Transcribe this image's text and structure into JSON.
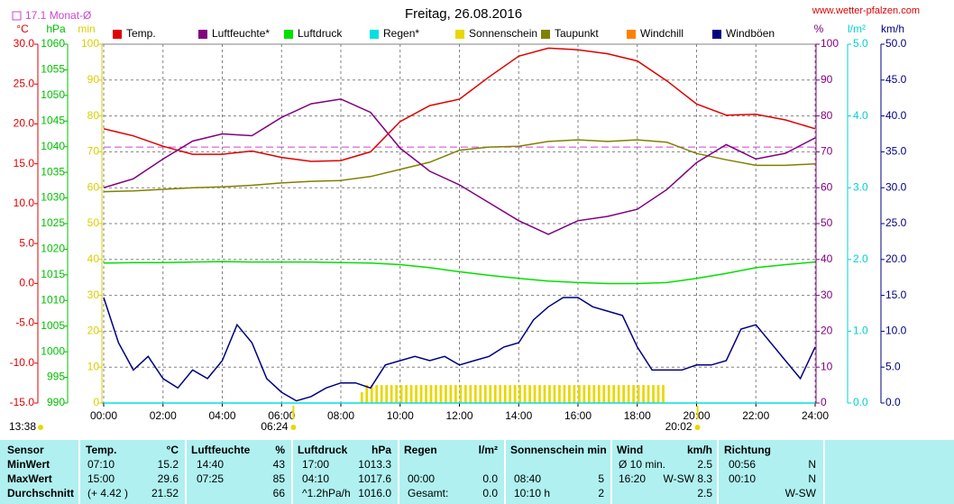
{
  "chart_data": {
    "type": "line",
    "title": "Freitag, 26.08.2016",
    "source": "www.wetter-pfalzen.com",
    "reference": {
      "label": "17.1 Monat-Ø",
      "value": 17.1,
      "axis": 0,
      "color": "#cc44cc"
    },
    "xlim": [
      0,
      1440
    ],
    "xticks": [
      {
        "value": 0,
        "label": "00:00"
      },
      {
        "value": 120,
        "label": "02:00"
      },
      {
        "value": 240,
        "label": "04:00"
      },
      {
        "value": 360,
        "label": "06:00"
      },
      {
        "value": 480,
        "label": "08:00"
      },
      {
        "value": 600,
        "label": "10:00"
      },
      {
        "value": 720,
        "label": "12:00"
      },
      {
        "value": 840,
        "label": "14:00"
      },
      {
        "value": 960,
        "label": "16:00"
      },
      {
        "value": 1080,
        "label": "18:00"
      },
      {
        "value": 1200,
        "label": "20:00"
      },
      {
        "value": 1320,
        "label": "22:00"
      },
      {
        "value": 1440,
        "label": "24:00"
      }
    ],
    "grid": true,
    "axes": [
      {
        "unit": "°C",
        "color": "#e00000",
        "side": "left",
        "lim": [
          -15,
          30
        ],
        "ticks": [
          {
            "value": -15,
            "label": "-15.0"
          },
          {
            "value": -10,
            "label": "-10.0"
          },
          {
            "value": -5,
            "label": "-5.0"
          },
          {
            "value": 0,
            "label": "0.0"
          },
          {
            "value": 5,
            "label": "5.0"
          },
          {
            "value": 10,
            "label": "10.0"
          },
          {
            "value": 15,
            "label": "15.0"
          },
          {
            "value": 20,
            "label": "20.0"
          },
          {
            "value": 25,
            "label": "25.0"
          },
          {
            "value": 30,
            "label": "30.0"
          }
        ]
      },
      {
        "unit": "hPa",
        "color": "#00c000",
        "side": "left",
        "lim": [
          990,
          1060
        ],
        "ticks": [
          990,
          995,
          1000,
          1005,
          1010,
          1015,
          1020,
          1025,
          1030,
          1035,
          1040,
          1045,
          1050,
          1055,
          1060
        ]
      },
      {
        "unit": "min",
        "color": "#d8d000",
        "side": "left",
        "lim": [
          0,
          100
        ],
        "ticks": [
          0,
          10,
          20,
          30,
          40,
          50,
          60,
          70,
          80,
          90,
          100
        ]
      },
      {
        "unit": "%",
        "color": "#800080",
        "side": "right",
        "lim": [
          0,
          100
        ],
        "ticks": [
          0,
          10,
          20,
          30,
          40,
          50,
          60,
          70,
          80,
          90,
          100
        ]
      },
      {
        "unit": "l/m²",
        "color": "#00d0d0",
        "side": "right",
        "lim": [
          0,
          5
        ],
        "ticks": [
          {
            "value": 0,
            "label": "0.0"
          },
          {
            "value": 1,
            "label": "1.0"
          },
          {
            "value": 2,
            "label": "2.0"
          },
          {
            "value": 3,
            "label": "3.0"
          },
          {
            "value": 4,
            "label": "4.0"
          },
          {
            "value": 5,
            "label": "5.0"
          }
        ]
      },
      {
        "unit": "km/h",
        "color": "#000080",
        "side": "right",
        "lim": [
          0,
          50
        ],
        "ticks": [
          {
            "value": 0,
            "label": "0.0"
          },
          {
            "value": 5,
            "label": "5.0"
          },
          {
            "value": 10,
            "label": "10.0"
          },
          {
            "value": 15,
            "label": "15.0"
          },
          {
            "value": 20,
            "label": "20.0"
          },
          {
            "value": 25,
            "label": "25.0"
          },
          {
            "value": 30,
            "label": "30.0"
          },
          {
            "value": 35,
            "label": "35.0"
          },
          {
            "value": 40,
            "label": "40.0"
          },
          {
            "value": 45,
            "label": "45.0"
          },
          {
            "value": 50,
            "label": "50.0"
          }
        ]
      }
    ],
    "series": [
      {
        "name": "Temp.",
        "color": "#e00000",
        "axis": 0,
        "kind": "line",
        "x": [
          0,
          60,
          120,
          180,
          240,
          300,
          360,
          420,
          480,
          540,
          600,
          660,
          720,
          780,
          840,
          900,
          960,
          1020,
          1080,
          1140,
          1200,
          1260,
          1320,
          1380,
          1440
        ],
        "values": [
          19.4,
          18.5,
          17.2,
          16.2,
          16.2,
          16.6,
          15.8,
          15.3,
          15.4,
          16.5,
          20.3,
          22.3,
          23.1,
          25.9,
          28.5,
          29.5,
          29.3,
          28.8,
          27.9,
          25.4,
          22.5,
          21.1,
          21.2,
          20.5,
          19.4
        ]
      },
      {
        "name": "Luftfeuchte*",
        "color": "#800080",
        "axis": 3,
        "kind": "line",
        "x": [
          0,
          60,
          120,
          180,
          240,
          300,
          360,
          420,
          480,
          540,
          600,
          660,
          720,
          780,
          840,
          900,
          960,
          1020,
          1080,
          1140,
          1200,
          1260,
          1320,
          1380,
          1440
        ],
        "values": [
          60,
          62.5,
          68,
          73,
          75,
          74.5,
          79.6,
          83.4,
          84.7,
          81,
          71,
          64.6,
          60.8,
          55.8,
          50.8,
          47,
          50.8,
          52,
          54,
          59.5,
          67,
          72,
          68,
          69.6,
          73.9
        ]
      },
      {
        "name": "Luftdruck",
        "color": "#00e000",
        "axis": 1,
        "kind": "line",
        "x": [
          0,
          60,
          120,
          180,
          240,
          300,
          360,
          420,
          480,
          540,
          600,
          660,
          720,
          780,
          840,
          900,
          960,
          1020,
          1080,
          1140,
          1200,
          1260,
          1320,
          1380,
          1440
        ],
        "values": [
          1017.3,
          1017.4,
          1017.4,
          1017.5,
          1017.6,
          1017.5,
          1017.5,
          1017.5,
          1017.4,
          1017.3,
          1017.0,
          1016.4,
          1015.6,
          1014.9,
          1014.3,
          1013.8,
          1013.5,
          1013.3,
          1013.3,
          1013.5,
          1014.3,
          1015.3,
          1016.4,
          1017.0,
          1017.5
        ]
      },
      {
        "name": "Regen*",
        "color": "#00e0e0",
        "axis": 4,
        "kind": "line",
        "x": [
          0,
          1440
        ],
        "values": [
          0,
          0
        ]
      },
      {
        "name": "Sonnenschein",
        "color": "#e8d800",
        "axis": 2,
        "kind": "bar",
        "x": [
          520,
          530,
          540,
          550,
          560,
          570,
          580,
          590,
          600,
          610,
          620,
          630,
          640,
          650,
          660,
          670,
          680,
          690,
          700,
          710,
          720,
          730,
          740,
          750,
          760,
          770,
          780,
          790,
          800,
          810,
          820,
          830,
          840,
          850,
          860,
          870,
          880,
          890,
          900,
          910,
          920,
          930,
          940,
          950,
          960,
          970,
          980,
          990,
          1000,
          1010,
          1020,
          1030,
          1040,
          1050,
          1060,
          1070,
          1080,
          1090,
          1100,
          1110,
          1120,
          1130
        ],
        "values": [
          3,
          5,
          5,
          5,
          5,
          5,
          5,
          5,
          5,
          5,
          5,
          5,
          5,
          5,
          5,
          5,
          5,
          5,
          5,
          5,
          5,
          5,
          5,
          5,
          5,
          5,
          5,
          5,
          5,
          5,
          5,
          5,
          5,
          5,
          5,
          5,
          5,
          5,
          5,
          5,
          5,
          5,
          5,
          5,
          5,
          5,
          5,
          5,
          5,
          5,
          5,
          5,
          5,
          5,
          5,
          5,
          5,
          5,
          5,
          5,
          5,
          5
        ]
      },
      {
        "name": "Taupunkt",
        "color": "#808000",
        "axis": 0,
        "kind": "line",
        "x": [
          0,
          60,
          120,
          180,
          240,
          300,
          360,
          420,
          480,
          540,
          600,
          660,
          720,
          780,
          840,
          900,
          960,
          1020,
          1080,
          1140,
          1200,
          1260,
          1320,
          1380,
          1440
        ],
        "values": [
          11.5,
          11.6,
          11.8,
          12.0,
          12.1,
          12.3,
          12.6,
          12.8,
          12.9,
          13.4,
          14.3,
          15.2,
          16.7,
          17.1,
          17.2,
          17.8,
          18.0,
          17.8,
          18.0,
          17.7,
          16.3,
          15.5,
          14.8,
          14.8,
          15.0
        ]
      },
      {
        "name": "Windchill",
        "color": "#ff8000",
        "axis": 0,
        "kind": "line",
        "x": [],
        "values": []
      },
      {
        "name": "Windböen",
        "color": "#000080",
        "axis": 5,
        "kind": "line",
        "x": [
          0,
          30,
          60,
          90,
          120,
          150,
          180,
          210,
          240,
          270,
          300,
          330,
          360,
          390,
          420,
          450,
          480,
          510,
          540,
          570,
          600,
          630,
          660,
          690,
          720,
          750,
          780,
          810,
          840,
          870,
          900,
          930,
          960,
          990,
          1020,
          1050,
          1080,
          1110,
          1140,
          1170,
          1200,
          1230,
          1260,
          1290,
          1320,
          1350,
          1380,
          1410,
          1440
        ],
        "values": [
          14.7,
          8.4,
          4.6,
          6.5,
          3.4,
          2.1,
          4.6,
          3.4,
          5.9,
          10.9,
          8.4,
          3.4,
          1.5,
          0.3,
          0.9,
          2.1,
          2.8,
          2.8,
          2.1,
          5.3,
          5.9,
          6.5,
          5.9,
          6.5,
          5.3,
          5.9,
          6.5,
          7.8,
          8.4,
          11.6,
          13.4,
          14.7,
          14.7,
          13.4,
          12.8,
          12.2,
          7.8,
          4.6,
          4.6,
          4.6,
          5.3,
          5.3,
          5.9,
          10.3,
          10.9,
          8.4,
          5.9,
          3.4,
          7.8
        ]
      }
    ],
    "sun": {
      "day_length": "13:38",
      "sunrise": {
        "value": 384,
        "label": "06:24"
      },
      "sunset": {
        "value": 1202,
        "label": "20:02"
      }
    }
  },
  "table": {
    "header": [
      "Sensor",
      "Temp.",
      "°C",
      "Luftfeuchte",
      "%",
      "Luftdruck",
      "hPa",
      "Regen",
      "l/m²",
      "Sonnenschein min",
      "Wind",
      "km/h",
      "Richtung"
    ],
    "rows": [
      {
        "label": "MinWert",
        "cells": [
          "07:10",
          "15.2",
          "14:40",
          "43",
          "17:00",
          "1013.3",
          null,
          null,
          null,
          null,
          "Ø 10 min.",
          "2.5",
          "00:56",
          "N"
        ]
      },
      {
        "label": "MaxWert",
        "cells": [
          "15:00",
          "29.6",
          "07:25",
          "85",
          "04:10",
          "1017.6",
          "00:00",
          "0.0",
          "08:40",
          "5",
          "16:20",
          "W-SW 8.3",
          "00:10",
          "N"
        ]
      },
      {
        "label": "Durchschnitt",
        "cells": [
          "(+ 4.42 )",
          "21.52",
          null,
          "66",
          "^1.2hPa/h",
          "1016.0",
          "Gesamt:",
          "0.0",
          "10:10 h",
          "2",
          null,
          "2.5",
          null,
          "W-SW"
        ]
      }
    ]
  }
}
